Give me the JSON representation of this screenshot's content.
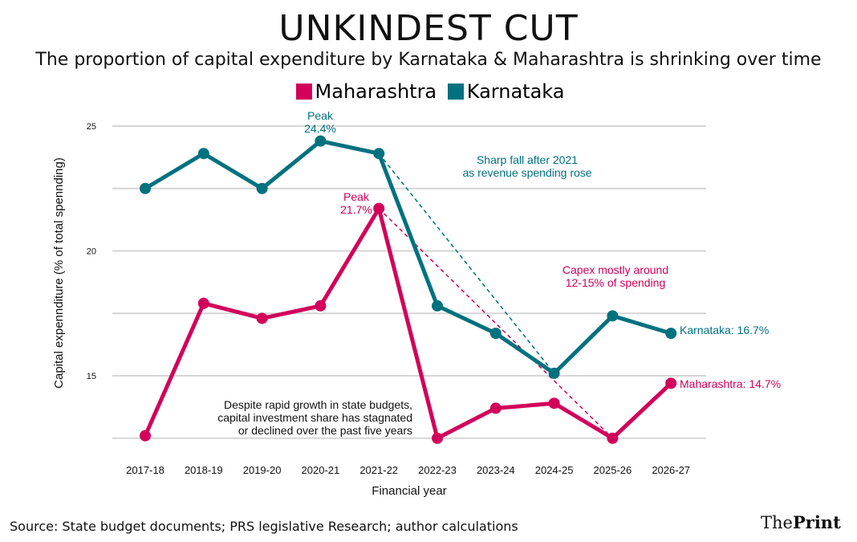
{
  "chart_data": {
    "type": "line",
    "title": "UNKINDEST CUT",
    "subtitle": "The proportion of capital expenditure by Karnataka & Maharashtra is shrinking over time",
    "xlabel": "Financial year",
    "ylabel": "Capital expennditure (% of total spennding)",
    "ylim": [
      12,
      25
    ],
    "yticks": [
      "25",
      "20",
      "15"
    ],
    "grid": true,
    "legend_placement": "top",
    "categories": [
      "2017-18",
      "2018-19",
      "2019-20",
      "2020-21",
      "2021-22",
      "2022-23",
      "2023-24",
      "2024-25",
      "2025-26",
      "2026-27"
    ],
    "series": [
      {
        "name": "Maharashtra",
        "color": "#D2005A",
        "values": [
          12.6,
          17.9,
          17.3,
          17.8,
          21.7,
          12.5,
          13.7,
          13.9,
          12.5,
          14.7
        ]
      },
      {
        "name": "Karnataka",
        "color": "#00717F",
        "values": [
          22.5,
          23.9,
          22.5,
          24.4,
          23.9,
          17.8,
          16.7,
          15.1,
          17.4,
          16.7
        ]
      }
    ],
    "annotations": {
      "k_peak": [
        "Peak",
        "24.4%"
      ],
      "m_peak": [
        "Peak",
        "21.7%"
      ],
      "k_fall": [
        "Sharp fall after 2021",
        "as revenue spending rose"
      ],
      "m_capex": [
        "Capex mostly around",
        "12-15% of spending"
      ],
      "note": [
        "Despite rapid growth in state budgets,",
        "capital investment share has stagnated",
        "or declined over the past five years"
      ],
      "k_end": "Karnataka: 16.7%",
      "m_end": "Maharashtra: 14.7%"
    }
  },
  "source": "Source: State budget documents; PRS legislative Research; author calculations",
  "logo": {
    "light": "The",
    "bold": "Print"
  }
}
